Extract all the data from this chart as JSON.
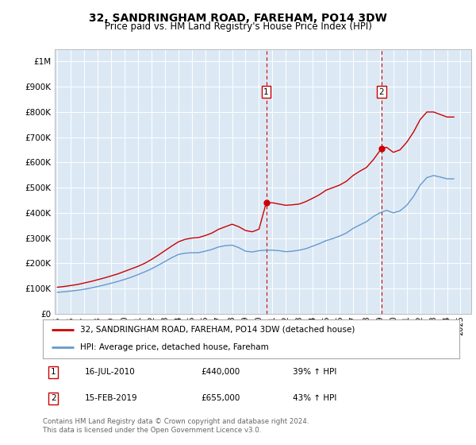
{
  "title": "32, SANDRINGHAM ROAD, FAREHAM, PO14 3DW",
  "subtitle": "Price paid vs. HM Land Registry's House Price Index (HPI)",
  "title_fontsize": 10,
  "subtitle_fontsize": 8.5,
  "background_color": "#ffffff",
  "plot_bg_color": "#dce9f5",
  "grid_color": "#ffffff",
  "red_line_color": "#cc0000",
  "blue_line_color": "#6699cc",
  "marker1_year": 2010.54,
  "marker1_value": 440000,
  "marker2_year": 2019.12,
  "marker2_value": 655000,
  "vline_color": "#cc0000",
  "marker_box_color": "#cc0000",
  "ylim": [
    0,
    1050000
  ],
  "xlim_start": 1994.8,
  "xlim_end": 2025.8,
  "ytick_labels": [
    "£0",
    "£100K",
    "£200K",
    "£300K",
    "£400K",
    "£500K",
    "£600K",
    "£700K",
    "£800K",
    "£900K",
    "£1M"
  ],
  "ytick_values": [
    0,
    100000,
    200000,
    300000,
    400000,
    500000,
    600000,
    700000,
    800000,
    900000,
    1000000
  ],
  "legend_red_label": "32, SANDRINGHAM ROAD, FAREHAM, PO14 3DW (detached house)",
  "legend_blue_label": "HPI: Average price, detached house, Fareham",
  "annotation_1_num": "1",
  "annotation_1_date": "16-JUL-2010",
  "annotation_1_price": "£440,000",
  "annotation_1_hpi": "39% ↑ HPI",
  "annotation_2_num": "2",
  "annotation_2_date": "15-FEB-2019",
  "annotation_2_price": "£655,000",
  "annotation_2_hpi": "43% ↑ HPI",
  "footer": "Contains HM Land Registry data © Crown copyright and database right 2024.\nThis data is licensed under the Open Government Licence v3.0.",
  "red_x": [
    1995.0,
    1995.5,
    1996.0,
    1996.5,
    1997.0,
    1997.5,
    1998.0,
    1998.5,
    1999.0,
    1999.5,
    2000.0,
    2000.5,
    2001.0,
    2001.5,
    2002.0,
    2002.5,
    2003.0,
    2003.5,
    2004.0,
    2004.5,
    2005.0,
    2005.5,
    2006.0,
    2006.5,
    2007.0,
    2007.5,
    2008.0,
    2008.5,
    2009.0,
    2009.5,
    2010.0,
    2010.54,
    2011.0,
    2011.5,
    2012.0,
    2012.5,
    2013.0,
    2013.5,
    2014.0,
    2014.5,
    2015.0,
    2015.5,
    2016.0,
    2016.5,
    2017.0,
    2017.5,
    2018.0,
    2018.5,
    2019.12,
    2019.5,
    2020.0,
    2020.5,
    2021.0,
    2021.5,
    2022.0,
    2022.5,
    2023.0,
    2023.5,
    2024.0,
    2024.5
  ],
  "red_y": [
    105000,
    108000,
    112000,
    116000,
    122000,
    128000,
    135000,
    142000,
    150000,
    158000,
    168000,
    178000,
    188000,
    200000,
    215000,
    232000,
    250000,
    268000,
    285000,
    295000,
    300000,
    302000,
    310000,
    320000,
    335000,
    345000,
    355000,
    345000,
    330000,
    325000,
    335000,
    440000,
    440000,
    435000,
    430000,
    432000,
    435000,
    445000,
    458000,
    472000,
    490000,
    500000,
    510000,
    525000,
    548000,
    565000,
    580000,
    610000,
    655000,
    660000,
    640000,
    650000,
    680000,
    720000,
    770000,
    800000,
    800000,
    790000,
    780000,
    780000
  ],
  "blue_x": [
    1995.0,
    1995.5,
    1996.0,
    1996.5,
    1997.0,
    1997.5,
    1998.0,
    1998.5,
    1999.0,
    1999.5,
    2000.0,
    2000.5,
    2001.0,
    2001.5,
    2002.0,
    2002.5,
    2003.0,
    2003.5,
    2004.0,
    2004.5,
    2005.0,
    2005.5,
    2006.0,
    2006.5,
    2007.0,
    2007.5,
    2008.0,
    2008.5,
    2009.0,
    2009.5,
    2010.0,
    2010.5,
    2011.0,
    2011.5,
    2012.0,
    2012.5,
    2013.0,
    2013.5,
    2014.0,
    2014.5,
    2015.0,
    2015.5,
    2016.0,
    2016.5,
    2017.0,
    2017.5,
    2018.0,
    2018.5,
    2019.0,
    2019.5,
    2020.0,
    2020.5,
    2021.0,
    2021.5,
    2022.0,
    2022.5,
    2023.0,
    2023.5,
    2024.0,
    2024.5
  ],
  "blue_y": [
    85000,
    87000,
    90000,
    93000,
    97000,
    102000,
    108000,
    114000,
    121000,
    128000,
    136000,
    145000,
    155000,
    166000,
    178000,
    192000,
    207000,
    222000,
    235000,
    240000,
    242000,
    242000,
    248000,
    255000,
    265000,
    270000,
    272000,
    262000,
    248000,
    245000,
    250000,
    252000,
    252000,
    250000,
    246000,
    248000,
    252000,
    258000,
    268000,
    278000,
    290000,
    298000,
    308000,
    320000,
    338000,
    352000,
    365000,
    385000,
    400000,
    410000,
    400000,
    408000,
    430000,
    465000,
    510000,
    540000,
    548000,
    542000,
    535000,
    535000
  ]
}
